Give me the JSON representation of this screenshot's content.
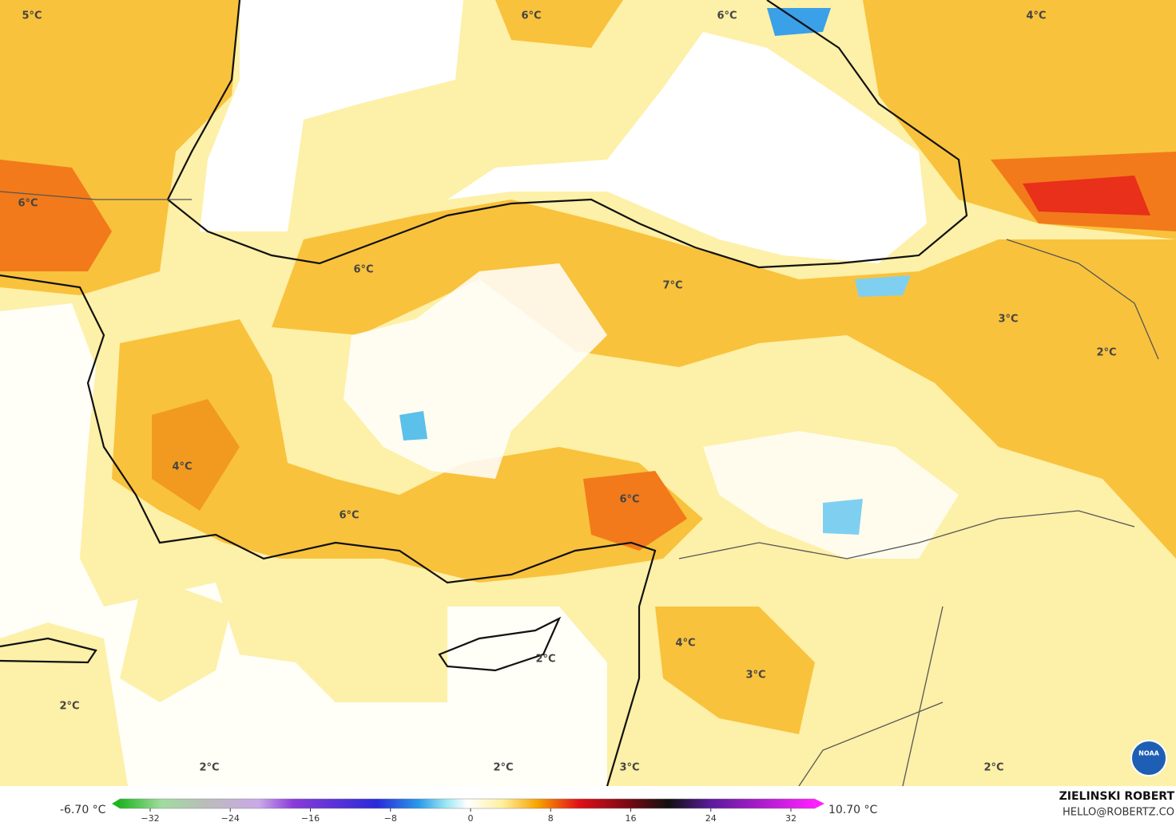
{
  "map": {
    "labels": [
      "5°C",
      "6°C",
      "6°C",
      "4°C",
      "6°C",
      "6°C",
      "7°C",
      "3°C",
      "2°C",
      "4°C",
      "6°C",
      "6°C",
      "2°C",
      "4°C",
      "3°C",
      "2°C",
      "2°C",
      "2°C",
      "3°C",
      "2°C"
    ],
    "colorbar": {
      "min_label": "-6.70 °C",
      "max_label": "10.70 °C",
      "lim": [
        -32,
        32
      ],
      "ticks": [
        {
          "value": -32,
          "label": "−32"
        },
        {
          "value": -24,
          "label": "−24"
        },
        {
          "value": -16,
          "label": "−16"
        },
        {
          "value": -8,
          "label": "−8"
        },
        0,
        8,
        16,
        24,
        32
      ]
    },
    "credit": {
      "name": "ZIELINSKI ROBERT",
      "email": "HELLO@ROBERTZ.CO"
    },
    "logo": "NOAA"
  }
}
